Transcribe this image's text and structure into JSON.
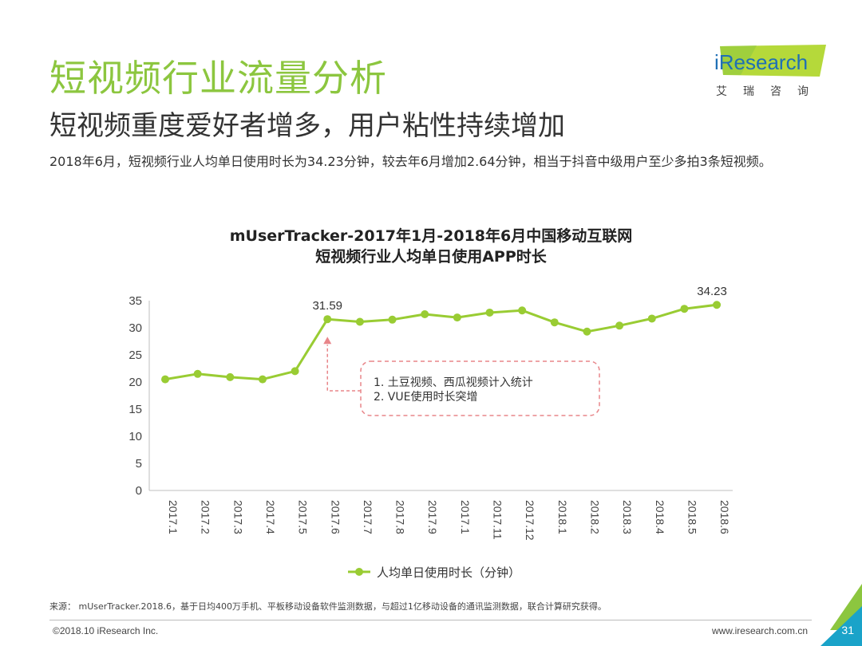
{
  "header": {
    "title": "短视频行业流量分析",
    "subtitle": "短视频重度爱好者增多，用户粘性持续增加",
    "summary": "2018年6月，短视频行业人均单日使用时长为34.23分钟，较去年6月增加2.64分钟，相当于抖音中级用户至少多拍3条短视频。"
  },
  "logo": {
    "text": "iResearch",
    "cn": "艾瑞咨询",
    "icon": "iresearch-logo-icon"
  },
  "chart_data": {
    "type": "line",
    "title_line1": "mUserTracker-2017年1月-2018年6月中国移动互联网",
    "title_line2": "短视频行业人均单日使用APP时长",
    "categories": [
      "2017.1",
      "2017.2",
      "2017.3",
      "2017.4",
      "2017.5",
      "2017.6",
      "2017.7",
      "2017.8",
      "2017.9",
      "2017.1",
      "2017.11",
      "2017.12",
      "2018.1",
      "2018.2",
      "2018.3",
      "2018.4",
      "2018.5",
      "2018.6"
    ],
    "series": [
      {
        "name": "人均单日使用时长（分钟）",
        "values": [
          20.5,
          21.5,
          20.9,
          20.5,
          22.0,
          31.59,
          31.1,
          31.5,
          32.5,
          31.9,
          32.8,
          33.2,
          31.0,
          29.3,
          30.4,
          31.7,
          33.5,
          34.23
        ],
        "color": "#99cc33"
      }
    ],
    "ylim": [
      0,
      35
    ],
    "yticks": [
      "0",
      "5",
      "10",
      "15",
      "20",
      "25",
      "30",
      "35"
    ],
    "data_labels": [
      {
        "index": 5,
        "text": "31.59"
      },
      {
        "index": 17,
        "text": "34.23"
      }
    ],
    "annotation": {
      "lines": [
        "1.    土豆视频、西瓜视频计入统计",
        "2.    VUE使用时长突增"
      ],
      "color": "#e8868a"
    },
    "legend_position": "bottom",
    "grid": false
  },
  "footer": {
    "source": "来源： mUserTracker.2018.6，基于日均400万手机、平板移动设备软件监测数据，与超过1亿移动设备的通讯监测数据，联合计算研究获得。",
    "copyright": "©2018.10 iResearch Inc.",
    "website": "www.iresearch.com.cn",
    "page_number": "31"
  },
  "colors": {
    "accent": "#8cc63f",
    "brand_blue": "#1f6fb5",
    "corner_green": "#8cc63f",
    "corner_teal": "#1aa3c9"
  }
}
